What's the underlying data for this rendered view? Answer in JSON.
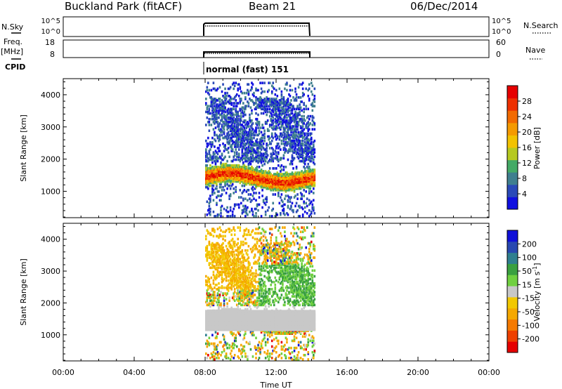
{
  "header": {
    "station": "Buckland Park (fitACF)",
    "beam": "Beam 21",
    "date": "06/Dec/2014"
  },
  "left_labels": {
    "nsky": "N.Sky",
    "freq_line1": "Freq.",
    "freq_line2": "[MHz]",
    "cpid": "CPID"
  },
  "right_labels": {
    "nsearch": "N.Search",
    "nave": "Nave"
  },
  "cpid_text": "normal (fast) 151",
  "chart_data": [
    {
      "type": "line",
      "panel": "noise",
      "series": [
        {
          "name": "N.Sky"
        },
        {
          "name": "N.Search"
        }
      ],
      "ylim": [
        "10^0",
        "10^5"
      ],
      "ticks_left": [
        "10^5",
        "10^0"
      ],
      "ticks_right": [
        "10^5",
        "10^0"
      ],
      "time_range": [
        "08:00",
        "14:10"
      ]
    },
    {
      "type": "line",
      "panel": "frequency",
      "series": [
        {
          "name": "Freq."
        },
        {
          "name": "Nave"
        }
      ],
      "ticks_left": [
        18,
        8
      ],
      "ticks_right": [
        60,
        0
      ],
      "time_range": [
        "08:00",
        "14:10"
      ]
    },
    {
      "type": "heatmap",
      "panel": "power",
      "ylabel": "Slant Range [km]",
      "yticks": [
        1000,
        2000,
        3000,
        4000
      ],
      "ylim": [
        180,
        4500
      ],
      "colorbar_label": "Power [dB]",
      "colorbar_ticks": [
        4,
        8,
        12,
        16,
        20,
        24,
        28
      ],
      "colorbar_colors": [
        "#1010e0",
        "#2a4ab8",
        "#3f7f8f",
        "#44aa66",
        "#b6c920",
        "#f2c200",
        "#f59a00",
        "#f26a00",
        "#ee3000",
        "#e60000"
      ]
    },
    {
      "type": "heatmap",
      "panel": "velocity",
      "ylabel": "Slant Range [km]",
      "yticks": [
        1000,
        2000,
        3000,
        4000
      ],
      "ylim": [
        180,
        4500
      ],
      "colorbar_label": "Velocity [m s^-1]",
      "colorbar_ticks": [
        -200,
        -100,
        -50,
        -15,
        15,
        50,
        100,
        200
      ],
      "colorbar_colors": [
        "#e60000",
        "#ee4000",
        "#f57a00",
        "#f5a800",
        "#f2c800",
        "#c8c8c8",
        "#70d040",
        "#3aa040",
        "#2f7f8f",
        "#2848b0",
        "#1010d8"
      ]
    }
  ],
  "x_axis": {
    "ticks": [
      "00:00",
      "04:00",
      "08:00",
      "12:00",
      "16:00",
      "20:00",
      "00:00"
    ],
    "label": "Time UT",
    "range_hours": [
      0,
      24
    ]
  }
}
